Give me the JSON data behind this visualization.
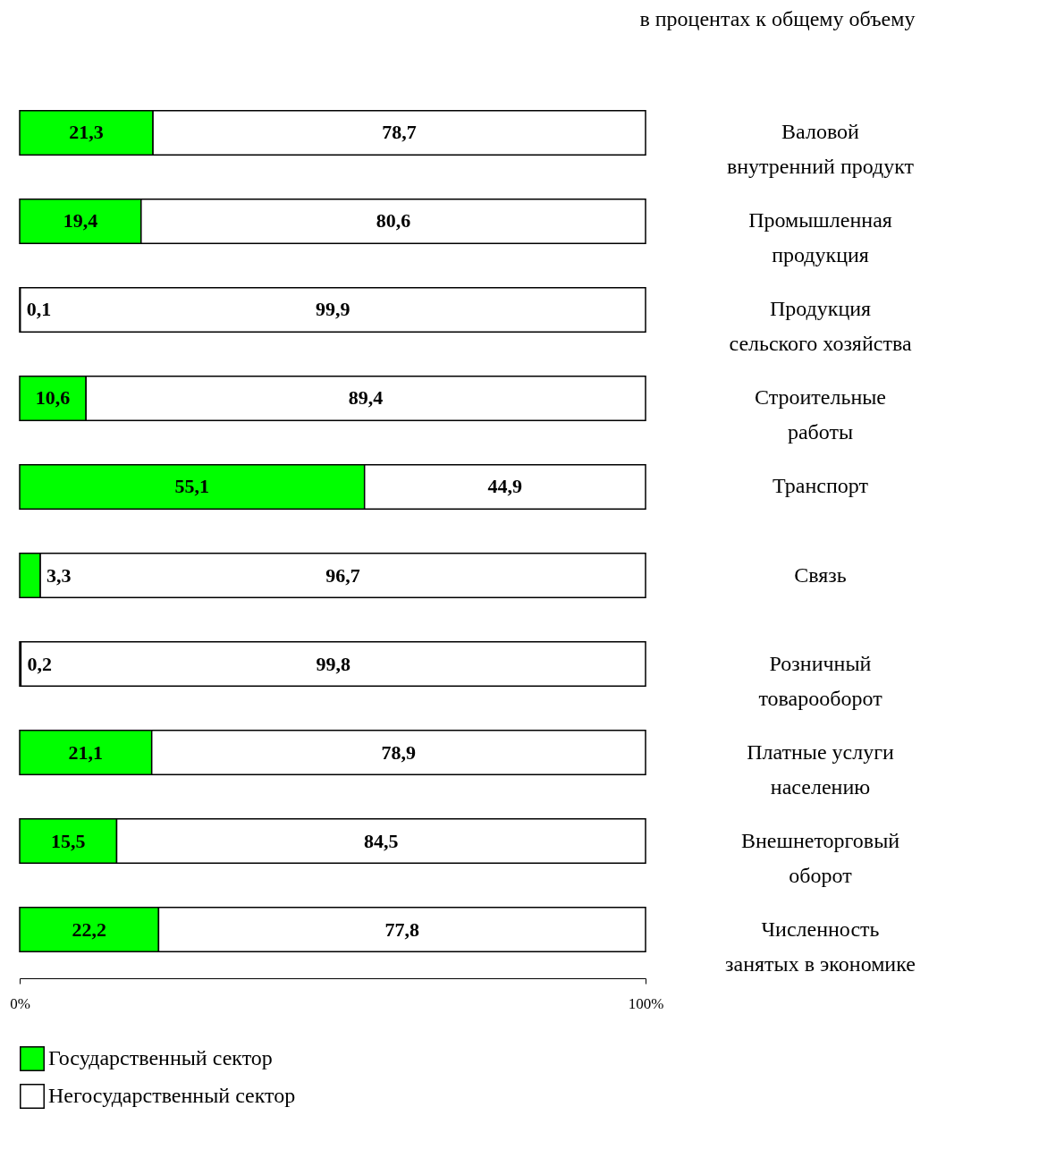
{
  "chart_data": {
    "type": "bar",
    "orientation": "horizontal",
    "stacked": true,
    "subtitle": "в процентах к общему объему",
    "categories": [
      "Валовой внутренний продукт",
      "Промышленная продукция",
      "Продукция сельского хозяйства",
      "Строительные работы",
      "Транспорт",
      "Связь",
      "Розничный товарооборот",
      "Платные услуги населению",
      "Внешнеторговый оборот",
      "Численность занятых в экономике"
    ],
    "series": [
      {
        "name": "Государственный сектор",
        "color": "#00ff00",
        "values": [
          21.3,
          19.4,
          0.1,
          10.6,
          55.1,
          3.3,
          0.2,
          21.1,
          15.5,
          22.2
        ],
        "value_labels": [
          "21,3",
          "19,4",
          "0,1",
          "10,6",
          "55,1",
          "3,3",
          "0,2",
          "21,1",
          "15,5",
          "22,2"
        ]
      },
      {
        "name": "Негосударственный сектор",
        "color": "#ffffff",
        "values": [
          78.7,
          80.6,
          99.9,
          89.4,
          44.9,
          96.7,
          99.8,
          78.9,
          84.5,
          77.8
        ],
        "value_labels": [
          "78,7",
          "80,6",
          "99,9",
          "89,4",
          "44,9",
          "96,7",
          "99,8",
          "78,9",
          "84,5",
          "77,8"
        ]
      }
    ],
    "xlim": [
      0,
      100
    ],
    "xticks": [
      {
        "value": 0,
        "label": "0%"
      },
      {
        "value": 100,
        "label": "100%"
      }
    ],
    "grid": false,
    "legend": "bottom"
  }
}
